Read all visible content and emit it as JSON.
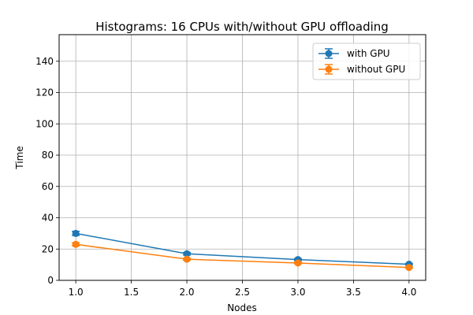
{
  "chart_data": {
    "type": "line",
    "title": "Histograms: 16 CPUs with/without GPU offloading",
    "xlabel": "Nodes",
    "ylabel": "Time",
    "xlim": [
      0.85,
      4.15
    ],
    "ylim": [
      0,
      157
    ],
    "x_ticks": [
      1.0,
      1.5,
      2.0,
      2.5,
      3.0,
      3.5,
      4.0
    ],
    "x_tick_labels": [
      "1.0",
      "1.5",
      "2.0",
      "2.5",
      "3.0",
      "3.5",
      "4.0"
    ],
    "y_ticks": [
      0,
      20,
      40,
      60,
      80,
      100,
      120,
      140
    ],
    "y_tick_labels": [
      "0",
      "20",
      "40",
      "60",
      "80",
      "100",
      "120",
      "140"
    ],
    "grid": true,
    "legend_position": "top-right",
    "series": [
      {
        "name": "with GPU",
        "color": "#1f77b4",
        "marker": "circle",
        "x": [
          1,
          2,
          3,
          4
        ],
        "y": [
          30,
          17,
          13.3,
          10.3
        ],
        "yerr": [
          1.3,
          0.8,
          0.6,
          0.5
        ]
      },
      {
        "name": "without GPU",
        "color": "#ff7f0e",
        "marker": "circle",
        "x": [
          1,
          2,
          3,
          4
        ],
        "y": [
          23,
          13.5,
          11.1,
          8.2
        ],
        "yerr": [
          1.0,
          0.6,
          0.5,
          0.4
        ]
      }
    ]
  }
}
